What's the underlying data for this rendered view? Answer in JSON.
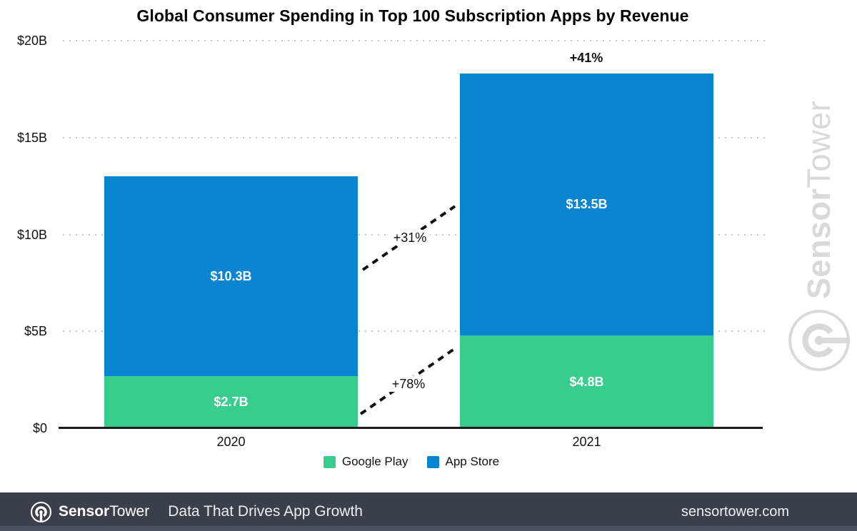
{
  "title": "Global Consumer Spending in Top 100 Subscription Apps by Revenue",
  "chart_data": {
    "type": "bar",
    "stacked": true,
    "title": "Global Consumer Spending in Top 100 Subscription Apps by Revenue",
    "categories": [
      "2020",
      "2021"
    ],
    "series": [
      {
        "name": "Google Play",
        "color": "#38CC8E",
        "values": [
          2.7,
          4.8
        ],
        "value_labels": [
          "$2.7B",
          "$4.8B"
        ]
      },
      {
        "name": "App Store",
        "color": "#0884D1",
        "values": [
          10.3,
          13.5
        ],
        "value_labels": [
          "$10.3B",
          "$13.5B"
        ]
      }
    ],
    "stack_totals": [
      13.0,
      18.3
    ],
    "ylim": [
      0,
      20
    ],
    "yticks": [
      {
        "value": 0,
        "label": "$0"
      },
      {
        "value": 5,
        "label": "$5B"
      },
      {
        "value": 10,
        "label": "$10B"
      },
      {
        "value": 15,
        "label": "$15B"
      },
      {
        "value": 20,
        "label": "$20B"
      }
    ],
    "grid": "horizontal-dotted",
    "legend_position": "bottom",
    "annotations": {
      "total_growth_2021": "+41%",
      "app_store_growth": "+31%",
      "google_play_growth": "+78%"
    }
  },
  "watermark": {
    "brand_bold": "Sensor",
    "brand_light": "Tower"
  },
  "footer": {
    "brand_bold": "Sensor",
    "brand_light": "Tower",
    "tagline": "Data That Drives App Growth",
    "website": "sensortower.com"
  }
}
